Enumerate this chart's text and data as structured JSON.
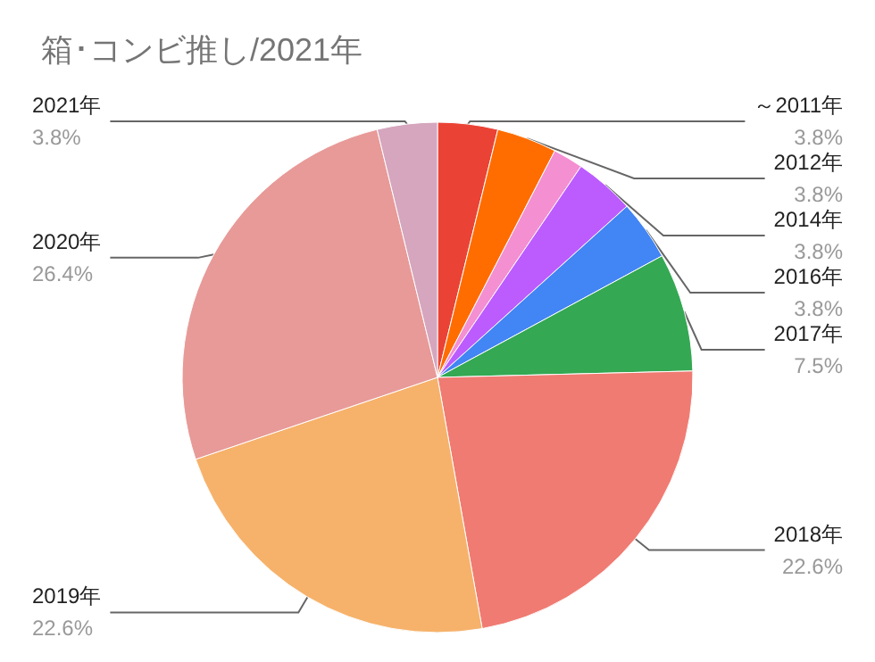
{
  "chart_data": {
    "type": "pie",
    "title": "箱･コンビ推し/2021年",
    "categories": [
      "～2011年",
      "2012年",
      null,
      "2014年",
      "2016年",
      "2017年",
      "2018年",
      "2019年",
      "2020年",
      "2021年"
    ],
    "values": [
      3.8,
      3.8,
      1.9,
      3.8,
      3.8,
      7.5,
      22.6,
      22.6,
      26.4,
      3.8
    ],
    "value_labels": [
      "3.8%",
      "3.8%",
      null,
      "3.8%",
      "3.8%",
      "7.5%",
      "22.6%",
      "22.6%",
      "26.4%",
      "3.8%"
    ],
    "colors": [
      "#ea4335",
      "#ff6d01",
      "#f48fd2",
      "#bc5cff",
      "#4285f4",
      "#34a853",
      "#f07b72",
      "#f6b26b",
      "#e89a98",
      "#d5a6bd"
    ],
    "legend": false
  }
}
